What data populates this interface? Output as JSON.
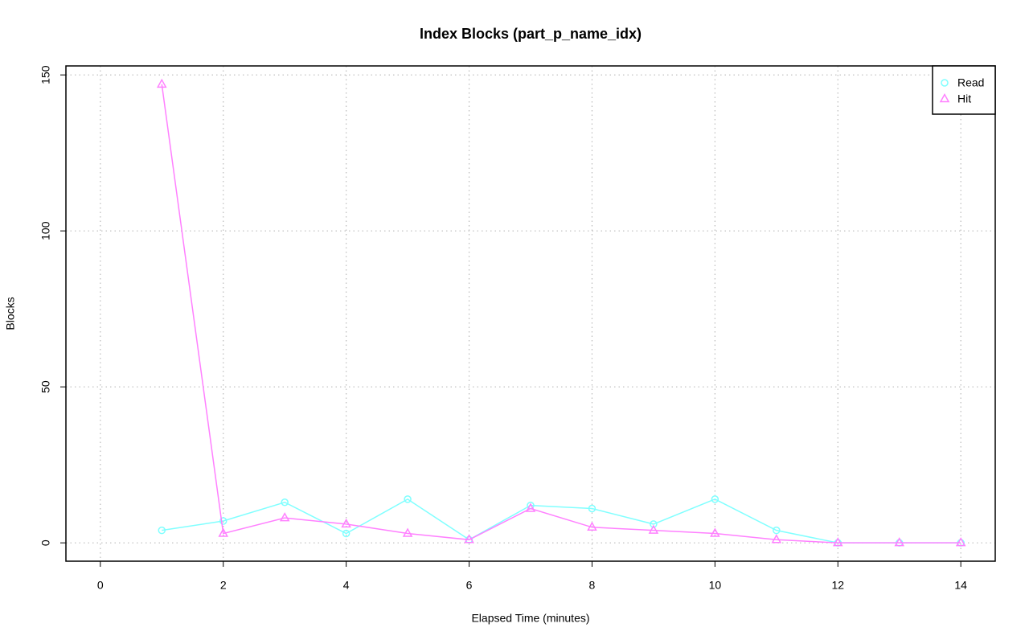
{
  "chart_data": {
    "type": "line",
    "title": "Index Blocks (part_p_name_idx)",
    "x_label": "Elapsed Time (minutes)",
    "y_label": "Blocks",
    "x": [
      1,
      2,
      3,
      4,
      5,
      6,
      7,
      8,
      9,
      10,
      11,
      12,
      13,
      14
    ],
    "series": [
      {
        "name": "Read",
        "color": "#80ffff",
        "marker": "circle",
        "values": [
          4,
          7,
          13,
          3,
          14,
          1,
          12,
          11,
          6,
          14,
          4,
          0,
          0,
          0
        ]
      },
      {
        "name": "Hit",
        "color": "#ff80ff",
        "marker": "triangle",
        "values": [
          147,
          3,
          8,
          6,
          3,
          1,
          11,
          5,
          4,
          3,
          1,
          0,
          0,
          0
        ]
      }
    ],
    "xlim": [
      -0.56,
      14.56
    ],
    "xticks": [
      0,
      2,
      4,
      6,
      8,
      10,
      12,
      14
    ],
    "ylim": [
      -5.88,
      152.88
    ],
    "yticks": [
      0,
      50,
      100,
      150
    ],
    "grid": true,
    "legend": "top-right"
  }
}
